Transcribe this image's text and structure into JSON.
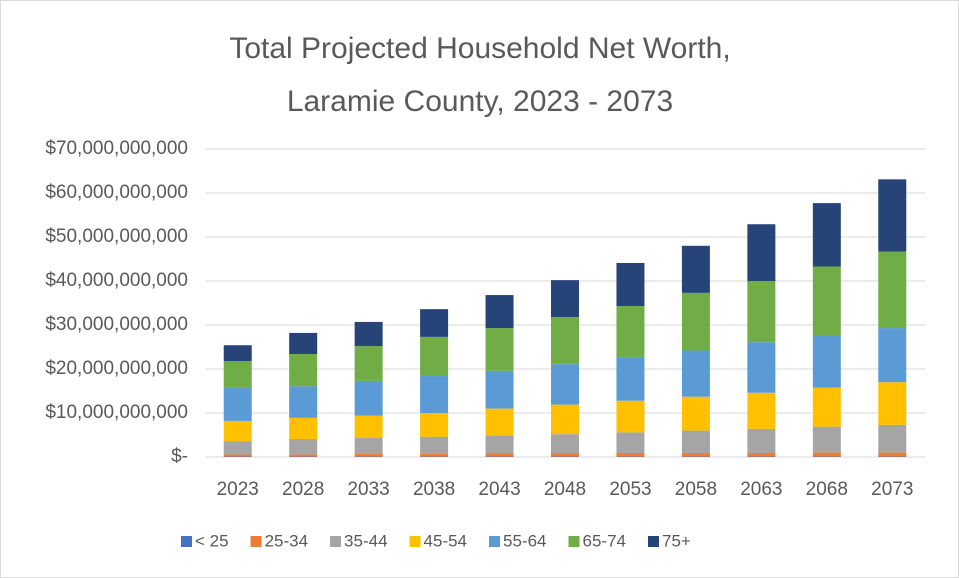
{
  "chart_data": {
    "type": "stacked_bar",
    "title": [
      "Total Projected Household Net Worth,",
      "Laramie County, 2023 - 2073"
    ],
    "categories": [
      "2023",
      "2028",
      "2033",
      "2038",
      "2043",
      "2048",
      "2053",
      "2058",
      "2063",
      "2068",
      "2073"
    ],
    "series": [
      {
        "name": "< 25",
        "color": "#4472c4",
        "values": [
          100000000,
          100000000,
          100000000,
          100000000,
          100000000,
          100000000,
          100000000,
          100000000,
          100000000,
          100000000,
          100000000
        ]
      },
      {
        "name": "25-34",
        "color": "#ed7d31",
        "values": [
          500000000,
          500000000,
          600000000,
          600000000,
          700000000,
          700000000,
          800000000,
          800000000,
          800000000,
          900000000,
          900000000
        ]
      },
      {
        "name": "35-44",
        "color": "#a5a5a5",
        "values": [
          3000000000,
          3500000000,
          3700000000,
          3900000000,
          4100000000,
          4400000000,
          4700000000,
          5100000000,
          5500000000,
          5900000000,
          6300000000
        ]
      },
      {
        "name": "45-54",
        "color": "#ffc000",
        "values": [
          4600000000,
          4800000000,
          5000000000,
          5400000000,
          6100000000,
          6700000000,
          7200000000,
          7700000000,
          8200000000,
          8900000000,
          9700000000
        ]
      },
      {
        "name": "55-64",
        "color": "#5b9bd5",
        "values": [
          7500000000,
          7200000000,
          7900000000,
          8400000000,
          8600000000,
          9200000000,
          9900000000,
          10500000000,
          11500000000,
          11700000000,
          12300000000
        ]
      },
      {
        "name": "65-74",
        "color": "#70ad47",
        "values": [
          6100000000,
          7300000000,
          7900000000,
          8900000000,
          9700000000,
          10700000000,
          11600000000,
          13100000000,
          13900000000,
          15800000000,
          17400000000
        ]
      },
      {
        "name": "75+",
        "color": "#264478",
        "values": [
          3600000000,
          4800000000,
          5500000000,
          6300000000,
          7500000000,
          8400000000,
          9800000000,
          10700000000,
          12900000000,
          14400000000,
          16400000000
        ]
      }
    ],
    "ylim": [
      0,
      70000000000
    ],
    "yticks": [
      {
        "value": 0,
        "label": "$-"
      },
      {
        "value": 10000000000,
        "label": "$10,000,000,000"
      },
      {
        "value": 20000000000,
        "label": "$20,000,000,000"
      },
      {
        "value": 30000000000,
        "label": "$30,000,000,000"
      },
      {
        "value": 40000000000,
        "label": "$40,000,000,000"
      },
      {
        "value": 50000000000,
        "label": "$50,000,000,000"
      },
      {
        "value": 60000000000,
        "label": "$60,000,000,000"
      },
      {
        "value": 70000000000,
        "label": "$70,000,000,000"
      }
    ],
    "grid": true,
    "legend": "bottom"
  }
}
